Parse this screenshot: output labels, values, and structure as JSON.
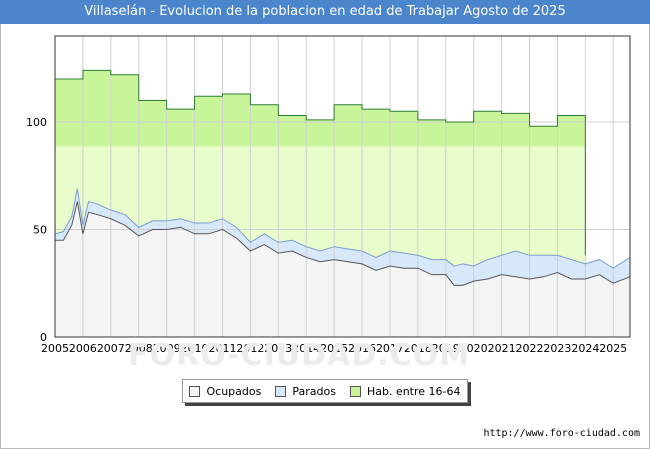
{
  "title": "Villaselán - Evolucion de la poblacion en edad de Trabajar Agosto de 2025",
  "watermark": "FORO-CIUDAD.COM",
  "source": "http://www.foro-ciudad.com",
  "colors": {
    "title_bg": "#4b86cd",
    "ocupados_fill": "#f4f4f4",
    "ocupados_line": "#555555",
    "parados_fill": "#d6e8fa",
    "parados_line": "#7a9fd0",
    "hab_fill": "#e8fccc",
    "hab_fill_top": "#c8f59a",
    "hab_line": "#2e7d32"
  },
  "legend": [
    {
      "label": "Ocupados",
      "color": "#f4f4f4"
    },
    {
      "label": "Parados",
      "color": "#d6e8fa"
    },
    {
      "label": "Hab. entre 16-64",
      "color": "#c8f59a"
    }
  ],
  "chart_data": {
    "type": "area",
    "title": "Villaselán - Evolucion de la poblacion en edad de Trabajar Agosto de 2025",
    "xlabel": "",
    "ylabel": "",
    "xlim": [
      2005,
      2025.6
    ],
    "ylim": [
      0,
      140
    ],
    "yticks": [
      0,
      50,
      100
    ],
    "xticks": [
      "2005",
      "2006",
      "2007",
      "2008",
      "2009",
      "2010",
      "2011",
      "2012",
      "2013",
      "2014",
      "2015",
      "2016",
      "2017",
      "2018",
      "2019",
      "2020",
      "2021",
      "2022",
      "2023",
      "2024",
      "2025"
    ],
    "grid": true,
    "legend_position": "bottom",
    "hab_16_64": {
      "years": [
        2005,
        2006,
        2007,
        2008,
        2009,
        2010,
        2011,
        2012,
        2013,
        2014,
        2015,
        2016,
        2017,
        2018,
        2019,
        2020,
        2021,
        2022,
        2023
      ],
      "values": [
        120,
        124,
        122,
        110,
        106,
        112,
        113,
        108,
        103,
        101,
        108,
        106,
        105,
        101,
        100,
        105,
        104,
        98,
        103
      ]
    },
    "parados_top": {
      "x": [
        2005,
        2005.3,
        2005.6,
        2005.8,
        2006.0,
        2006.2,
        2006.5,
        2007.0,
        2007.5,
        2008.0,
        2008.5,
        2009.0,
        2009.5,
        2010.0,
        2010.5,
        2011.0,
        2011.5,
        2012.0,
        2012.5,
        2013.0,
        2013.5,
        2014.0,
        2014.5,
        2015.0,
        2015.5,
        2016.0,
        2016.5,
        2017.0,
        2017.5,
        2018.0,
        2018.5,
        2019.0,
        2019.3,
        2019.6,
        2020.0,
        2020.5,
        2021.0,
        2021.5,
        2022.0,
        2022.5,
        2023.0,
        2023.5,
        2024.0,
        2024.5,
        2025.0,
        2025.6
      ],
      "values": [
        48,
        49,
        56,
        69,
        52,
        63,
        62,
        59,
        57,
        51,
        54,
        54,
        55,
        53,
        53,
        55,
        51,
        44,
        48,
        44,
        45,
        42,
        40,
        42,
        41,
        40,
        37,
        40,
        39,
        38,
        36,
        36,
        33,
        34,
        33,
        36,
        38,
        40,
        38,
        38,
        38,
        36,
        34,
        36,
        32,
        37
      ]
    },
    "ocupados": {
      "x": [
        2005,
        2005.3,
        2005.6,
        2005.8,
        2006.0,
        2006.2,
        2006.5,
        2007.0,
        2007.5,
        2008.0,
        2008.5,
        2009.0,
        2009.5,
        2010.0,
        2010.5,
        2011.0,
        2011.5,
        2012.0,
        2012.5,
        2013.0,
        2013.5,
        2014.0,
        2014.5,
        2015.0,
        2015.5,
        2016.0,
        2016.5,
        2017.0,
        2017.5,
        2018.0,
        2018.5,
        2019.0,
        2019.3,
        2019.6,
        2020.0,
        2020.5,
        2021.0,
        2021.5,
        2022.0,
        2022.5,
        2023.0,
        2023.5,
        2024.0,
        2024.5,
        2025.0,
        2025.6
      ],
      "values": [
        45,
        45,
        52,
        63,
        48,
        58,
        57,
        55,
        52,
        47,
        50,
        50,
        51,
        48,
        48,
        50,
        46,
        40,
        43,
        39,
        40,
        37,
        35,
        36,
        35,
        34,
        31,
        33,
        32,
        32,
        29,
        29,
        24,
        24,
        26,
        27,
        29,
        28,
        27,
        28,
        30,
        27,
        27,
        29,
        25,
        28
      ]
    }
  }
}
